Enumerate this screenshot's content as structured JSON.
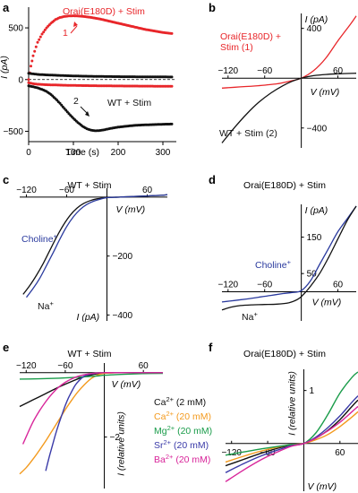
{
  "figure": {
    "panel_letters": [
      "a",
      "b",
      "c",
      "d",
      "e",
      "f"
    ]
  },
  "colors": {
    "red": "#e8262a",
    "black": "#111111",
    "blue": "#2a3a9e",
    "orange": "#f39a1e",
    "green": "#1a9c4a",
    "navy": "#3a3aa8",
    "magenta": "#d8259a"
  },
  "chart_data": [
    {
      "panel": "a",
      "type": "line",
      "title": "",
      "xlabel": "Time (s)",
      "ylabel": "I (pA)",
      "xlim": [
        0,
        330
      ],
      "ylim": [
        -600,
        700
      ],
      "xticks": [
        "0",
        "100",
        "200",
        "300"
      ],
      "yticks": [
        "-500",
        "0",
        "500"
      ],
      "zero_line": "dashed",
      "annotations": [
        {
          "text": "Orai(E180D) + Stim",
          "color": "#e8262a"
        },
        {
          "text": "WT + Stim",
          "color": "#111111"
        },
        {
          "text": "1",
          "color": "#e8262a"
        },
        {
          "text": "2",
          "color": "#111111"
        }
      ],
      "series": [
        {
          "name": "Orai(E180D) + Stim",
          "style": "dots",
          "color": "#e8262a",
          "x": [
            0,
            5,
            10,
            20,
            30,
            40,
            50,
            60,
            70,
            80,
            90,
            100,
            120,
            140,
            160,
            180,
            200,
            220,
            240,
            260,
            280,
            300,
            320
          ],
          "y": [
            0,
            130,
            230,
            360,
            440,
            500,
            545,
            580,
            600,
            610,
            615,
            617,
            612,
            600,
            585,
            565,
            545,
            525,
            505,
            485,
            470,
            455,
            445
          ]
        },
        {
          "name": "",
          "style": "dots",
          "color": "#e8262a",
          "x": [
            0,
            10,
            20,
            40,
            80,
            120,
            160,
            200,
            240,
            280,
            320
          ],
          "y": [
            -30,
            -40,
            -45,
            -50,
            -55,
            -58,
            -60,
            -62,
            -63,
            -64,
            -65
          ]
        },
        {
          "name": "",
          "style": "dots",
          "color": "#111111",
          "x": [
            0,
            10,
            20,
            40,
            80,
            120,
            160,
            200,
            240,
            280,
            320
          ],
          "y": [
            60,
            55,
            50,
            45,
            38,
            33,
            30,
            28,
            27,
            26,
            25
          ]
        },
        {
          "name": "WT + Stim",
          "style": "dots",
          "color": "#111111",
          "x": [
            0,
            10,
            20,
            30,
            40,
            50,
            60,
            70,
            80,
            90,
            100,
            110,
            120,
            130,
            140,
            150,
            160,
            170,
            180,
            200,
            220,
            240,
            260,
            280,
            300,
            320
          ],
          "y": [
            -60,
            -70,
            -80,
            -95,
            -115,
            -145,
            -185,
            -230,
            -280,
            -330,
            -375,
            -415,
            -450,
            -475,
            -490,
            -495,
            -492,
            -485,
            -475,
            -460,
            -450,
            -442,
            -438,
            -435,
            -432,
            -430
          ]
        }
      ]
    },
    {
      "panel": "b",
      "type": "line",
      "title": "",
      "xlabel": "V (mV)",
      "ylabel": "I (pA)",
      "xlim": [
        -130,
        90
      ],
      "ylim": [
        -560,
        520
      ],
      "xticks": [
        "-120",
        "-60",
        "60"
      ],
      "yticks": [
        "400",
        "-400"
      ],
      "annotations": [
        {
          "text": "Orai(E180D) +",
          "color": "#e8262a"
        },
        {
          "text": "Stim (1)",
          "color": "#e8262a"
        },
        {
          "text": "WT + Stim (2)",
          "color": "#111111"
        }
      ],
      "series": [
        {
          "name": "Orai(E180D) + Stim (1)",
          "color": "#e8262a",
          "x": [
            -130,
            -100,
            -70,
            -40,
            -20,
            0,
            20,
            40,
            60,
            80,
            90
          ],
          "y": [
            -80,
            -70,
            -60,
            -45,
            -25,
            0,
            60,
            160,
            300,
            430,
            500
          ]
        },
        {
          "name": "WT + Stim (2)",
          "color": "#111111",
          "x": [
            -130,
            -110,
            -90,
            -70,
            -50,
            -30,
            -15,
            0,
            20,
            40,
            60,
            90
          ],
          "y": [
            -520,
            -400,
            -290,
            -195,
            -120,
            -60,
            -25,
            0,
            20,
            30,
            35,
            40
          ]
        }
      ]
    },
    {
      "panel": "c",
      "type": "line",
      "title": "WT + Stim",
      "xlabel": "V (mV)",
      "ylabel": "I (pA)",
      "xlim": [
        -130,
        90
      ],
      "ylim": [
        -420,
        30
      ],
      "xticks": [
        "-120",
        "-60",
        "60"
      ],
      "yticks": [
        "-200",
        "-400"
      ],
      "annotations": [
        {
          "text": "Choline+",
          "color": "#2a3a9e"
        },
        {
          "text": "Na+",
          "color": "#111111"
        }
      ],
      "series": [
        {
          "name": "Na+",
          "color": "#111111",
          "x": [
            -125,
            -115,
            -105,
            -95,
            -85,
            -75,
            -65,
            -55,
            -45,
            -35,
            -25,
            -15,
            0,
            20,
            40,
            60,
            80,
            90
          ],
          "y": [
            -330,
            -300,
            -265,
            -225,
            -180,
            -135,
            -95,
            -62,
            -38,
            -22,
            -12,
            -6,
            -2,
            0,
            2,
            4,
            6,
            8
          ]
        },
        {
          "name": "Choline+",
          "color": "#2a3a9e",
          "x": [
            -120,
            -110,
            -100,
            -90,
            -80,
            -70,
            -60,
            -50,
            -40,
            -30,
            -20,
            -10,
            0,
            20,
            40,
            60,
            80,
            90
          ],
          "y": [
            -340,
            -310,
            -275,
            -232,
            -188,
            -142,
            -100,
            -67,
            -42,
            -25,
            -14,
            -7,
            -2,
            0,
            2,
            4,
            6,
            8
          ]
        }
      ]
    },
    {
      "panel": "d",
      "type": "line",
      "title": "Orai(E180D) + Stim",
      "xlabel": "V (mV)",
      "ylabel": "I (pA)",
      "xlim": [
        -130,
        90
      ],
      "ylim": [
        -80,
        240
      ],
      "xticks": [
        "-120",
        "-60",
        "60"
      ],
      "yticks": [
        "150",
        "50"
      ],
      "annotations": [
        {
          "text": "Choline+",
          "color": "#2a3a9e"
        },
        {
          "text": "Na+",
          "color": "#111111"
        }
      ],
      "series": [
        {
          "name": "Choline+",
          "color": "#2a3a9e",
          "x": [
            -130,
            -110,
            -90,
            -70,
            -50,
            -30,
            -15,
            0,
            15,
            30,
            45,
            60,
            75,
            90
          ],
          "y": [
            -28,
            -24,
            -20,
            -15,
            -10,
            -5,
            -2,
            3,
            30,
            75,
            120,
            165,
            200,
            235
          ]
        },
        {
          "name": "Na+",
          "color": "#111111",
          "x": [
            -130,
            -115,
            -100,
            -80,
            -60,
            -40,
            -20,
            -5,
            5,
            15,
            30,
            45,
            60,
            75,
            90
          ],
          "y": [
            -50,
            -42,
            -38,
            -36,
            -35,
            -34,
            -30,
            -20,
            -5,
            15,
            50,
            95,
            145,
            195,
            235
          ]
        }
      ]
    },
    {
      "panel": "e",
      "type": "line",
      "title": "WT + Stim",
      "xlabel": "V (mV)",
      "ylabel": "I (relative units)",
      "xlim": [
        -130,
        90
      ],
      "ylim": [
        -3.6,
        0.3
      ],
      "xticks": [
        "-120",
        "-60",
        "60"
      ],
      "yticks": [
        "-2"
      ],
      "legend": {
        "placement": "right",
        "entries": [
          {
            "label": "Ca2+ (2 mM)",
            "color": "#111111"
          },
          {
            "label": "Ca2+ (20 mM)",
            "color": "#f39a1e"
          },
          {
            "label": "Mg2+ (20 mM)",
            "color": "#1a9c4a"
          },
          {
            "label": "Sr2+ (20 mM)",
            "color": "#3a3aa8"
          },
          {
            "label": "Ba2+ (20 mM)",
            "color": "#d8259a"
          }
        ]
      },
      "series": [
        {
          "name": "Ca2+ (2 mM)",
          "color": "#111111",
          "x": [
            -130,
            -110,
            -90,
            -70,
            -50,
            -35,
            -20,
            -10,
            0,
            20,
            40,
            60,
            90
          ],
          "y": [
            -1.05,
            -0.85,
            -0.65,
            -0.45,
            -0.27,
            -0.15,
            -0.07,
            -0.03,
            -0.01,
            0,
            0,
            0,
            0
          ]
        },
        {
          "name": "Ca2+ (20 mM)",
          "color": "#f39a1e",
          "x": [
            -130,
            -120,
            -110,
            -100,
            -90,
            -80,
            -70,
            -60,
            -50,
            -40,
            -30,
            -20,
            -10,
            0,
            20,
            40,
            60,
            90
          ],
          "y": [
            -3.15,
            -2.95,
            -2.7,
            -2.42,
            -2.12,
            -1.8,
            -1.48,
            -1.15,
            -0.85,
            -0.58,
            -0.36,
            -0.18,
            -0.07,
            -0.02,
            0,
            0,
            0,
            0
          ]
        },
        {
          "name": "Mg2+ (20 mM)",
          "color": "#1a9c4a",
          "x": [
            -130,
            -100,
            -70,
            -40,
            -10,
            0,
            30,
            60,
            90
          ],
          "y": [
            -0.2,
            -0.19,
            -0.17,
            -0.14,
            -0.1,
            -0.08,
            -0.05,
            -0.03,
            -0.02
          ]
        },
        {
          "name": "Sr2+ (20 mM)",
          "color": "#3a3aa8",
          "x": [
            -90,
            -85,
            -80,
            -75,
            -70,
            -65,
            -60,
            -55,
            -50,
            -45,
            -40,
            -35,
            -30,
            -20,
            -10,
            0,
            20,
            40,
            60,
            90
          ],
          "y": [
            -3.05,
            -2.65,
            -2.28,
            -1.92,
            -1.6,
            -1.3,
            -1.02,
            -0.78,
            -0.58,
            -0.4,
            -0.27,
            -0.17,
            -0.1,
            -0.04,
            -0.01,
            0,
            0,
            0,
            0,
            0
          ]
        },
        {
          "name": "Ba2+ (20 mM)",
          "color": "#d8259a",
          "x": [
            -125,
            -118,
            -110,
            -100,
            -90,
            -80,
            -70,
            -60,
            -50,
            -40,
            -30,
            -20,
            -10,
            0,
            20,
            40,
            60,
            90
          ],
          "y": [
            -2.22,
            -1.9,
            -1.55,
            -1.2,
            -0.9,
            -0.65,
            -0.45,
            -0.3,
            -0.19,
            -0.11,
            -0.06,
            -0.03,
            -0.01,
            0,
            0,
            0,
            0,
            0
          ]
        }
      ]
    },
    {
      "panel": "f",
      "type": "line",
      "title": "Orai(E180D) + Stim",
      "xlabel": "V (mV)",
      "ylabel": "I (relative units)",
      "xlim": [
        -130,
        90
      ],
      "ylim": [
        -0.9,
        1.4
      ],
      "xticks": [
        "-120",
        "-60",
        "60"
      ],
      "yticks": [
        "1"
      ],
      "series": [
        {
          "name": "Ca2+ (2 mM)",
          "color": "#111111",
          "x": [
            -130,
            -100,
            -70,
            -40,
            -20,
            0,
            20,
            40,
            60,
            80,
            90
          ],
          "y": [
            -0.42,
            -0.3,
            -0.18,
            -0.08,
            -0.03,
            0,
            0.1,
            0.25,
            0.45,
            0.7,
            0.82
          ]
        },
        {
          "name": "Ca2+ (20 mM)",
          "color": "#f39a1e",
          "x": [
            -130,
            -100,
            -70,
            -40,
            -20,
            0,
            20,
            40,
            60,
            80,
            90
          ],
          "y": [
            -0.35,
            -0.24,
            -0.14,
            -0.06,
            -0.02,
            0,
            0.07,
            0.17,
            0.32,
            0.5,
            0.6
          ]
        },
        {
          "name": "Mg2+ (20 mM)",
          "color": "#1a9c4a",
          "x": [
            -130,
            -100,
            -70,
            -40,
            -20,
            0,
            20,
            40,
            60,
            80,
            90
          ],
          "y": [
            -0.22,
            -0.16,
            -0.1,
            -0.05,
            -0.02,
            0,
            0.2,
            0.55,
            0.95,
            1.25,
            1.35
          ]
        },
        {
          "name": "Sr2+ (20 mM)",
          "color": "#3a3aa8",
          "x": [
            -130,
            -100,
            -70,
            -40,
            -20,
            0,
            20,
            40,
            60,
            80,
            90
          ],
          "y": [
            -0.55,
            -0.38,
            -0.23,
            -0.11,
            -0.04,
            0,
            0.12,
            0.3,
            0.52,
            0.78,
            0.9
          ]
        },
        {
          "name": "Ba2+ (20 mM)",
          "color": "#d8259a",
          "x": [
            -130,
            -100,
            -70,
            -40,
            -20,
            0,
            20,
            40,
            60,
            80,
            90
          ],
          "y": [
            -0.72,
            -0.5,
            -0.3,
            -0.14,
            -0.05,
            0,
            0.1,
            0.24,
            0.4,
            0.6,
            0.7
          ]
        }
      ]
    }
  ]
}
